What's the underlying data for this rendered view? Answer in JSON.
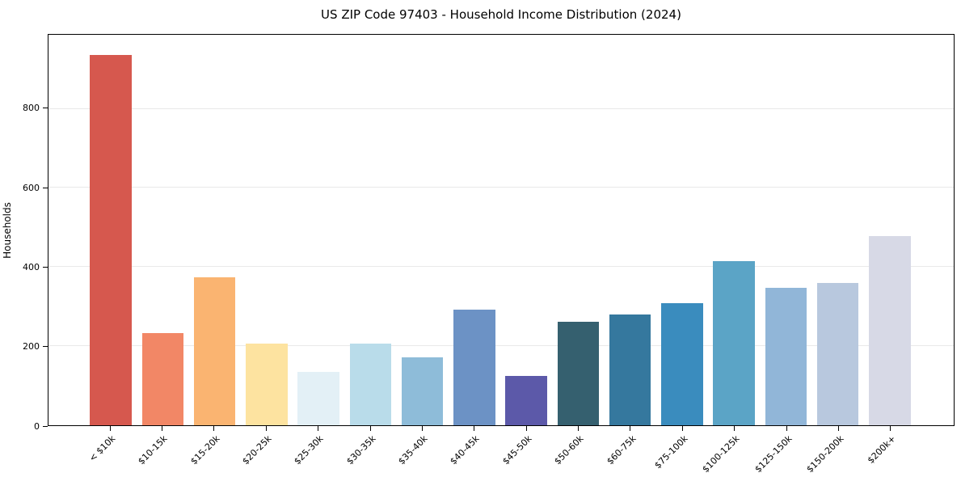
{
  "chart_data": {
    "type": "bar",
    "title": "US ZIP Code 97403 - Household Income Distribution (2024)",
    "xlabel": "",
    "ylabel": "Households",
    "categories": [
      "< $10k",
      "$10-15k",
      "$15-20k",
      "$20-25k",
      "$25-30k",
      "$30-35k",
      "$35-40k",
      "$40-45k",
      "$45-50k",
      "$50-60k",
      "$60-75k",
      "$75-100k",
      "$100-125k",
      "$125-150k",
      "$150-200k",
      "$200k+"
    ],
    "values": [
      936,
      233,
      373,
      206,
      135,
      207,
      172,
      293,
      124,
      262,
      281,
      309,
      414,
      348,
      359,
      478
    ],
    "bar_colors": [
      "#d6584e",
      "#f28766",
      "#fab471",
      "#fde3a0",
      "#e3f0f6",
      "#b9dcea",
      "#8ebcd9",
      "#6c92c5",
      "#5c59a9",
      "#35606f",
      "#35789e",
      "#3a8cbe",
      "#5ba4c6",
      "#91b6d8",
      "#b8c8de",
      "#d7d9e6"
    ],
    "ylim": [
      0,
      987
    ],
    "yticks": [
      0,
      200,
      400,
      600,
      800
    ],
    "grid": true,
    "legend": "none",
    "tick_label_rotation": 45,
    "gridline_color": "#e9e9e9",
    "spine_color": "#000000"
  }
}
